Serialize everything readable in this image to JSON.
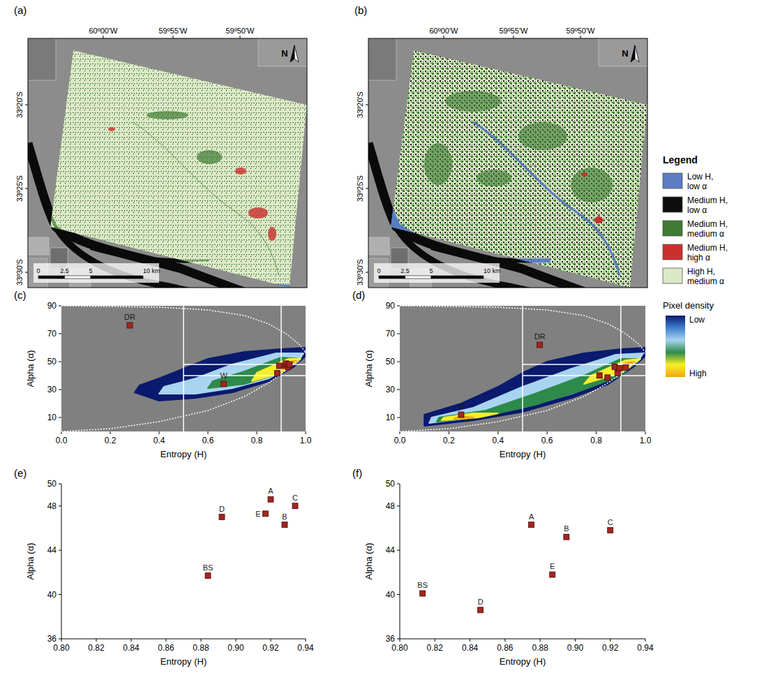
{
  "maps": [
    {
      "panel": "(a)",
      "lon_labels": [
        "60º00'W",
        "59º55'W",
        "59º50'W"
      ],
      "lat_labels": [
        "33º20'S",
        "33º25'S",
        "33º30'S"
      ],
      "scale_labels": [
        "0",
        "2.5",
        "5",
        "10 km"
      ],
      "north": "N"
    },
    {
      "panel": "(b)",
      "lon_labels": [
        "60º00'W",
        "59º55'W",
        "59º50'W"
      ],
      "lat_labels": [
        "33º20'S",
        "33º25'S",
        "33º30'S"
      ],
      "scale_labels": [
        "0",
        "2.5",
        "5",
        "10 km"
      ],
      "north": "N"
    }
  ],
  "map_legend": {
    "title": "Legend",
    "entries": [
      {
        "label": "Low H, low α",
        "color": "#5a7cc2"
      },
      {
        "label": "Medium H, low α",
        "color": "#0d0d0d"
      },
      {
        "label": "Medium H, medium α",
        "color": "#3e7b32"
      },
      {
        "label": "Medium H, high α",
        "color": "#c9302c"
      },
      {
        "label": "High H, medium α",
        "color": "#dce9c7"
      }
    ]
  },
  "density_legend": {
    "title": "Pixel density",
    "low": "Low",
    "high": "High",
    "colors": [
      "#0a1a6e",
      "#3f7fd0",
      "#a8d4f0",
      "#2e8a4a",
      "#f7ee2a",
      "#f0a418"
    ]
  },
  "chart_data": [
    {
      "type": "scatter",
      "panel": "(c)",
      "x_label": "Entropy (H)",
      "y_label": "Alpha (α)",
      "xlim": [
        0,
        1
      ],
      "xticks": [
        {
          "value": 0,
          "label": "0.0"
        },
        0.2,
        0.4,
        0.6,
        0.8,
        {
          "value": 1,
          "label": "1.0"
        }
      ],
      "ylim": [
        0,
        90
      ],
      "yticks": [
        10,
        30,
        50,
        70,
        90
      ],
      "boundaries": {
        "H": [
          0.5,
          0.9
        ],
        "alpha": [
          40,
          48
        ]
      },
      "series": [
        {
          "color": "#a32520",
          "marker": "square",
          "x": [
            0.28,
            0.665,
            0.884,
            0.892,
            0.917,
            0.92,
            0.928,
            0.934
          ],
          "values": [
            76,
            34,
            41.7,
            47.0,
            47.3,
            48.6,
            46.3,
            48.0
          ],
          "labels": [
            "DR",
            "W",
            null,
            null,
            null,
            null,
            null,
            null
          ]
        }
      ]
    },
    {
      "type": "scatter",
      "panel": "(d)",
      "x_label": "Entropy (H)",
      "y_label": "Alpha (α)",
      "xlim": [
        0,
        1
      ],
      "xticks": [
        {
          "value": 0,
          "label": "0.0"
        },
        0.2,
        0.4,
        0.6,
        0.8,
        {
          "value": 1,
          "label": "1.0"
        }
      ],
      "ylim": [
        0,
        90
      ],
      "yticks": [
        10,
        30,
        50,
        70,
        90
      ],
      "boundaries": {
        "H": [
          0.5,
          0.9
        ],
        "alpha": [
          40,
          48
        ]
      },
      "series": [
        {
          "color": "#a32520",
          "marker": "square",
          "x": [
            0.57,
            0.25,
            0.813,
            0.846,
            0.875,
            0.887,
            0.895,
            0.92
          ],
          "values": [
            62,
            12,
            40.1,
            38.6,
            46.3,
            41.8,
            45.2,
            45.8
          ],
          "labels": [
            "DR",
            "W",
            null,
            null,
            null,
            null,
            null,
            null
          ]
        }
      ]
    },
    {
      "type": "scatter",
      "panel": "(e)",
      "x_label": "Entropy (H)",
      "y_label": "Alpha (α)",
      "xlim": [
        0.8,
        0.94
      ],
      "xticks": [
        {
          "value": 0.8,
          "label": "0.80"
        },
        0.82,
        0.84,
        0.86,
        0.88,
        {
          "value": 0.9,
          "label": "0.90"
        },
        0.92,
        0.94
      ],
      "ylim": [
        36,
        50
      ],
      "yticks": [
        36,
        40,
        44,
        48,
        50
      ],
      "series": [
        {
          "color": "#a32520",
          "marker": "square",
          "x": [
            0.884,
            0.892,
            0.917,
            0.92,
            0.928,
            0.934
          ],
          "values": [
            41.7,
            47.0,
            47.3,
            48.6,
            46.3,
            48.0
          ],
          "labels": [
            "BS",
            "D",
            "E",
            "A",
            "B",
            "C"
          ]
        }
      ]
    },
    {
      "type": "scatter",
      "panel": "(f)",
      "x_label": "Entropy (H)",
      "y_label": "Alpha (α)",
      "xlim": [
        0.8,
        0.94
      ],
      "xticks": [
        {
          "value": 0.8,
          "label": "0.80"
        },
        0.82,
        0.84,
        0.86,
        0.88,
        {
          "value": 0.9,
          "label": "0.90"
        },
        0.92,
        0.94
      ],
      "ylim": [
        36,
        50
      ],
      "yticks": [
        36,
        40,
        44,
        48,
        50
      ],
      "series": [
        {
          "color": "#a32520",
          "marker": "square",
          "x": [
            0.813,
            0.846,
            0.887,
            0.875,
            0.895,
            0.92
          ],
          "values": [
            40.1,
            38.6,
            41.8,
            46.3,
            45.2,
            45.8
          ],
          "labels": [
            "BS",
            "D",
            "E",
            "A",
            "B",
            "C"
          ]
        }
      ]
    }
  ]
}
